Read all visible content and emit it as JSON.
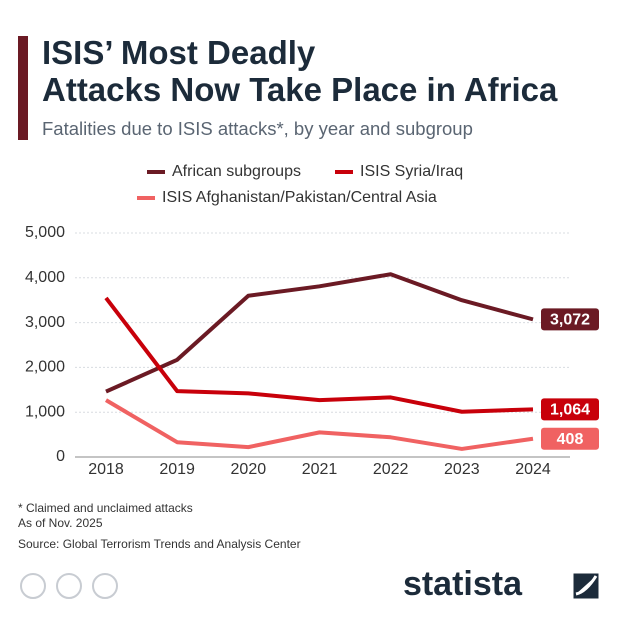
{
  "chart_data": {
    "type": "line",
    "title": "ISIS’ Most Deadly Attacks Now Take Place in Africa",
    "subtitle": "Fatalities due to ISIS attacks*, by year and subgroup",
    "categories": [
      "2018",
      "2019",
      "2020",
      "2021",
      "2022",
      "2023",
      "2024"
    ],
    "series": [
      {
        "name": "African subgroups",
        "color": "#6b1a24",
        "values": [
          1460,
          2170,
          3600,
          3810,
          4080,
          3500,
          3072
        ],
        "value_labels": [
          null,
          null,
          null,
          null,
          null,
          null,
          "3,072"
        ]
      },
      {
        "name": "ISIS Syria/Iraq",
        "color": "#c8000a",
        "values": [
          3550,
          1470,
          1420,
          1270,
          1330,
          1010,
          1064
        ],
        "value_labels": [
          null,
          null,
          null,
          null,
          null,
          null,
          "1,064"
        ]
      },
      {
        "name": "ISIS Afghanistan/Pakistan/Central Asia",
        "color": "#f06262",
        "values": [
          1270,
          330,
          220,
          550,
          440,
          180,
          408
        ],
        "value_labels": [
          null,
          null,
          null,
          null,
          null,
          null,
          "408"
        ]
      }
    ],
    "ylim": [
      0,
      5000
    ],
    "yticks": [
      0,
      {
        "value": 1000,
        "label": "1,000"
      },
      {
        "value": 2000,
        "label": "2,000"
      },
      {
        "value": 3000,
        "label": "3,000"
      },
      {
        "value": 4000,
        "label": "4,000"
      },
      {
        "value": 5000,
        "label": "5,000"
      }
    ],
    "grid": true,
    "notes": [
      "* Claimed and unclaimed attacks",
      "As of Nov. 2025",
      "Source: Global Terrorism Trends and Analysis Center"
    ],
    "brand": "statista"
  }
}
